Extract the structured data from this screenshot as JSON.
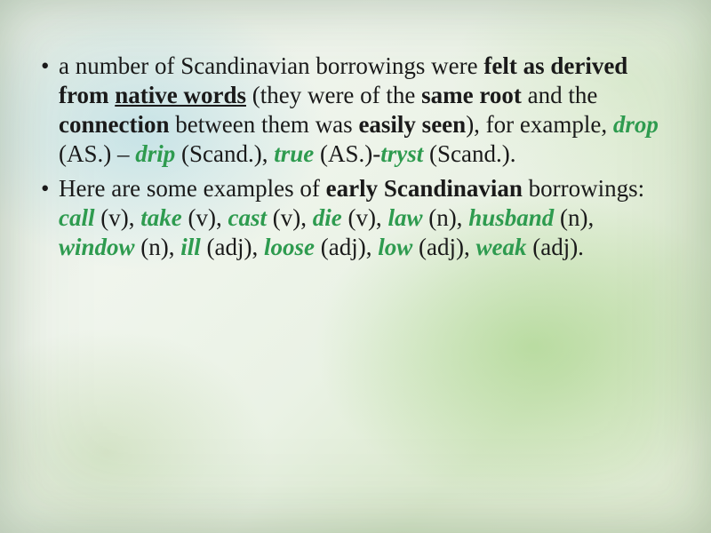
{
  "colors": {
    "text": "#1a1a1a",
    "highlight": "#2e9b4f",
    "bg_gradient_stops": [
      "#e8f0e8",
      "#f0f5ed",
      "#eaf2e5",
      "#dceacf",
      "#e5efd8"
    ]
  },
  "typography": {
    "font_family": "Times New Roman",
    "body_fontsize_pt": 20,
    "line_height": 1.22
  },
  "bullets": [
    {
      "runs": [
        {
          "t": "a number of Scandinavian borrowings were "
        },
        {
          "t": "felt as derived from ",
          "b": true
        },
        {
          "t": "native words",
          "b": true,
          "u": true
        },
        {
          "t": " "
        },
        {
          "t": "(they were of the "
        },
        {
          "t": "same root",
          "b": true
        },
        {
          "t": " and the "
        },
        {
          "t": "connection",
          "b": true
        },
        {
          "t": " between them was "
        },
        {
          "t": "easily seen",
          "b": true
        },
        {
          "t": "), for example, "
        },
        {
          "t": "drop",
          "hi": true
        },
        {
          "t": " (AS.) – "
        },
        {
          "t": "drip",
          "hi": true
        },
        {
          "t": " (Scand.), "
        },
        {
          "t": "true",
          "hi": true
        },
        {
          "t": " (AS.)-"
        },
        {
          "t": "tryst",
          "hi": true
        },
        {
          "t": " (Scand.)."
        }
      ]
    },
    {
      "runs": [
        {
          "t": "Here are some examples of "
        },
        {
          "t": "early Scandinavian",
          "b": true
        },
        {
          "t": " borrowings: "
        },
        {
          "t": "call",
          "hi": true
        },
        {
          "t": " (v), "
        },
        {
          "t": "take",
          "hi": true
        },
        {
          "t": " (v), "
        },
        {
          "t": "cast",
          "hi": true
        },
        {
          "t": " (v), "
        },
        {
          "t": "die",
          "hi": true
        },
        {
          "t": " (v), "
        },
        {
          "t": "law",
          "hi": true
        },
        {
          "t": " (n), "
        },
        {
          "t": "husband",
          "hi": true
        },
        {
          "t": " (n), "
        },
        {
          "t": "window",
          "hi": true
        },
        {
          "t": " (n), "
        },
        {
          "t": "ill",
          "hi": true
        },
        {
          "t": " (adj), "
        },
        {
          "t": "loose",
          "hi": true
        },
        {
          "t": " (adj), "
        },
        {
          "t": "low",
          "hi": true
        },
        {
          "t": " (adj), "
        },
        {
          "t": "weak",
          "hi": true
        },
        {
          "t": " (adj)."
        }
      ]
    }
  ]
}
